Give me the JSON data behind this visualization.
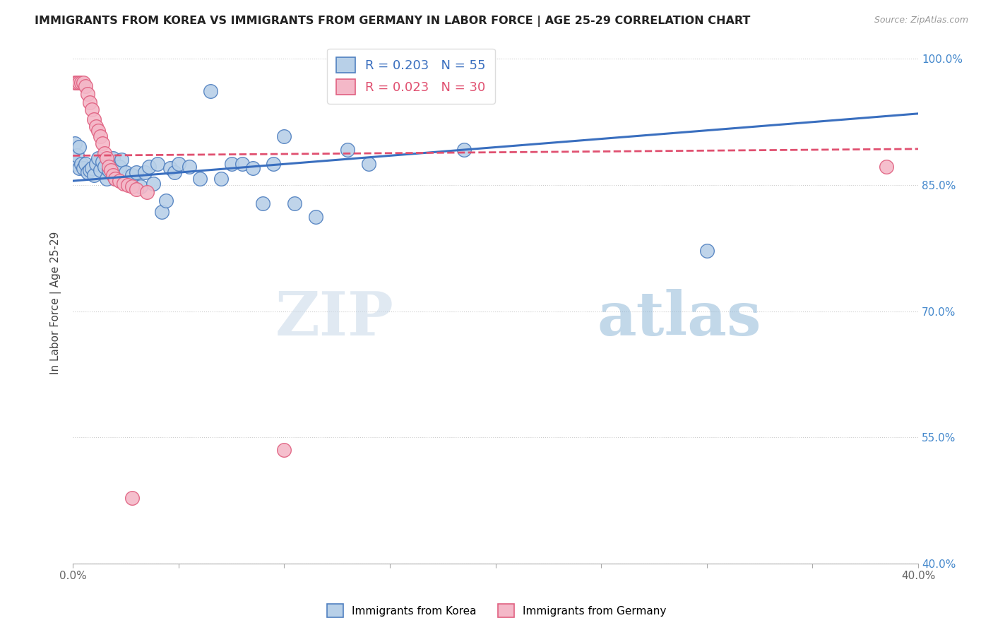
{
  "title": "IMMIGRANTS FROM KOREA VS IMMIGRANTS FROM GERMANY IN LABOR FORCE | AGE 25-29 CORRELATION CHART",
  "source": "Source: ZipAtlas.com",
  "ylabel": "In Labor Force | Age 25-29",
  "x_min": 0.0,
  "x_max": 0.4,
  "y_min": 0.4,
  "y_max": 1.02,
  "y_ticks": [
    0.4,
    0.55,
    0.7,
    0.85,
    1.0
  ],
  "y_tick_labels": [
    "40.0%",
    "55.0%",
    "70.0%",
    "85.0%",
    "100.0%"
  ],
  "korea_color": "#b8d0e8",
  "germany_color": "#f4b8c8",
  "korea_edge_color": "#5080c0",
  "germany_edge_color": "#e06080",
  "korea_line_color": "#3a6fbf",
  "germany_line_color": "#e05070",
  "watermark_zip": "ZIP",
  "watermark_atlas": "atlas",
  "korea_points": [
    [
      0.001,
      0.9
    ],
    [
      0.001,
      0.875
    ],
    [
      0.002,
      0.885
    ],
    [
      0.003,
      0.87
    ],
    [
      0.003,
      0.895
    ],
    [
      0.004,
      0.875
    ],
    [
      0.005,
      0.87
    ],
    [
      0.006,
      0.875
    ],
    [
      0.007,
      0.865
    ],
    [
      0.008,
      0.868
    ],
    [
      0.009,
      0.87
    ],
    [
      0.01,
      0.862
    ],
    [
      0.011,
      0.875
    ],
    [
      0.012,
      0.882
    ],
    [
      0.013,
      0.868
    ],
    [
      0.014,
      0.878
    ],
    [
      0.015,
      0.872
    ],
    [
      0.016,
      0.858
    ],
    [
      0.017,
      0.868
    ],
    [
      0.018,
      0.872
    ],
    [
      0.019,
      0.882
    ],
    [
      0.02,
      0.858
    ],
    [
      0.022,
      0.872
    ],
    [
      0.023,
      0.88
    ],
    [
      0.025,
      0.865
    ],
    [
      0.027,
      0.852
    ],
    [
      0.028,
      0.862
    ],
    [
      0.03,
      0.865
    ],
    [
      0.032,
      0.848
    ],
    [
      0.034,
      0.865
    ],
    [
      0.036,
      0.872
    ],
    [
      0.038,
      0.852
    ],
    [
      0.04,
      0.875
    ],
    [
      0.042,
      0.818
    ],
    [
      0.044,
      0.832
    ],
    [
      0.046,
      0.87
    ],
    [
      0.048,
      0.865
    ],
    [
      0.05,
      0.875
    ],
    [
      0.055,
      0.872
    ],
    [
      0.06,
      0.858
    ],
    [
      0.065,
      0.962
    ],
    [
      0.07,
      0.858
    ],
    [
      0.075,
      0.875
    ],
    [
      0.08,
      0.875
    ],
    [
      0.085,
      0.87
    ],
    [
      0.09,
      0.828
    ],
    [
      0.095,
      0.875
    ],
    [
      0.1,
      0.908
    ],
    [
      0.105,
      0.828
    ],
    [
      0.115,
      0.812
    ],
    [
      0.13,
      0.892
    ],
    [
      0.14,
      0.875
    ],
    [
      0.165,
      0.972
    ],
    [
      0.185,
      0.892
    ],
    [
      0.3,
      0.772
    ]
  ],
  "germany_points": [
    [
      0.001,
      0.972
    ],
    [
      0.002,
      0.972
    ],
    [
      0.003,
      0.972
    ],
    [
      0.004,
      0.972
    ],
    [
      0.005,
      0.972
    ],
    [
      0.006,
      0.968
    ],
    [
      0.007,
      0.958
    ],
    [
      0.008,
      0.948
    ],
    [
      0.009,
      0.94
    ],
    [
      0.01,
      0.928
    ],
    [
      0.011,
      0.92
    ],
    [
      0.012,
      0.915
    ],
    [
      0.013,
      0.908
    ],
    [
      0.014,
      0.9
    ],
    [
      0.015,
      0.888
    ],
    [
      0.016,
      0.882
    ],
    [
      0.017,
      0.872
    ],
    [
      0.018,
      0.868
    ],
    [
      0.019,
      0.862
    ],
    [
      0.02,
      0.858
    ],
    [
      0.022,
      0.855
    ],
    [
      0.024,
      0.852
    ],
    [
      0.026,
      0.85
    ],
    [
      0.028,
      0.848
    ],
    [
      0.03,
      0.845
    ],
    [
      0.035,
      0.842
    ],
    [
      0.028,
      0.478
    ],
    [
      0.1,
      0.535
    ],
    [
      0.16,
      0.972
    ],
    [
      0.385,
      0.872
    ]
  ],
  "korea_trend": [
    0.0,
    0.855,
    0.4,
    0.935
  ],
  "germany_trend": [
    0.0,
    0.885,
    0.4,
    0.893
  ]
}
